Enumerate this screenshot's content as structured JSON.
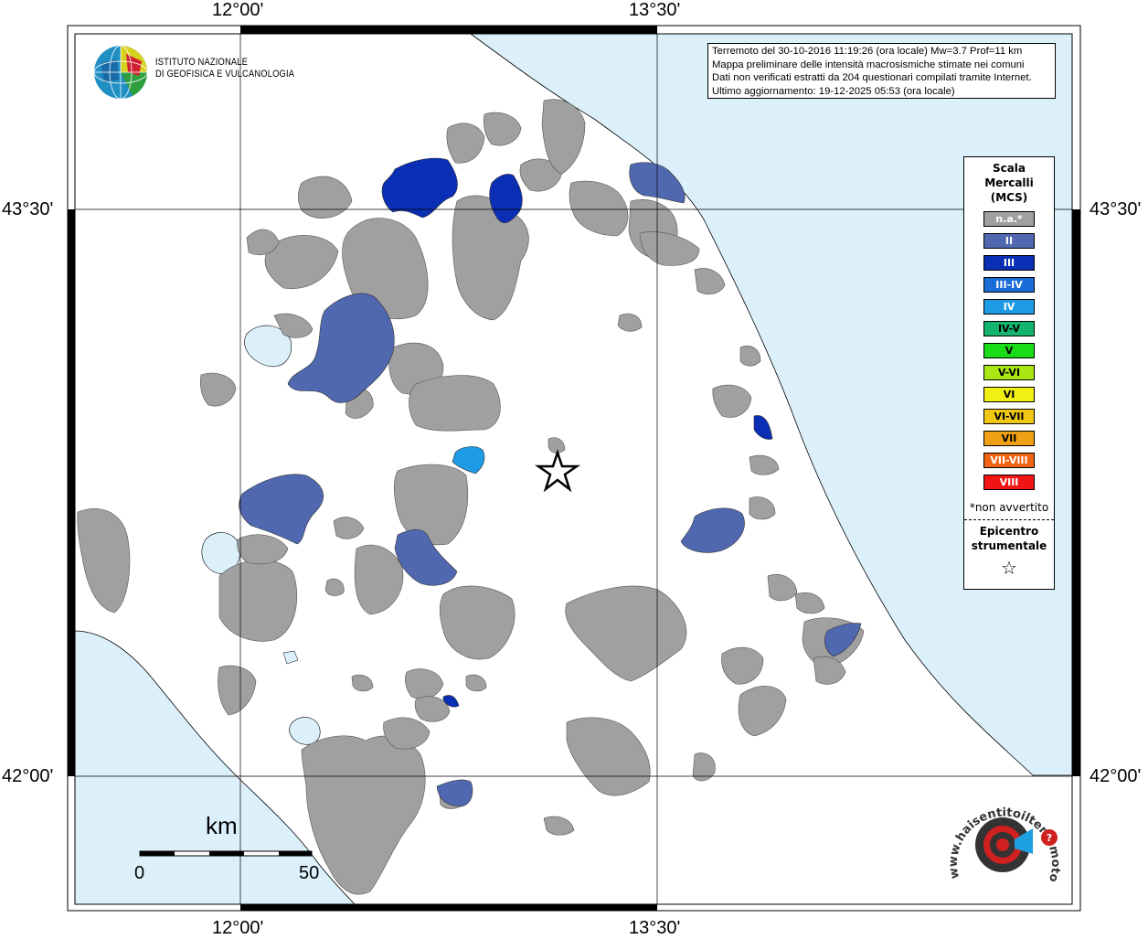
{
  "coords": {
    "top_left": "12°00'",
    "top_right": "13°30'",
    "bottom_left": "12°00'",
    "bottom_right": "13°30'",
    "left_top": "43°30'",
    "left_bottom": "42°00'",
    "right_top": "43°30'",
    "right_bottom": "42°00'"
  },
  "info": {
    "line1": "Terremoto del 30-10-2016 11:19:26 (ora locale) Mw=3.7 Prof=11 km",
    "line2": "Mappa preliminare delle intensità macrosismiche stimate nei comuni",
    "line3": "Dati non verificati estratti da 204 questionari compilati tramite Internet.",
    "line4": "Ultimo aggiornamento: 19-12-2025 05:53 (ora locale)"
  },
  "ingv": {
    "line1": "ISTITUTO NAZIONALE",
    "line2": "DI GEOFISICA E VULCANOLOGIA"
  },
  "legend": {
    "title_line1": "Scala",
    "title_line2": "Mercalli",
    "title_line3": "(MCS)",
    "items": [
      {
        "label": "n.a.*",
        "color": "#a0a0a0"
      },
      {
        "label": "II",
        "color": "#4f68b0"
      },
      {
        "label": "III",
        "color": "#0a2eb4"
      },
      {
        "label": "III-IV",
        "color": "#1a6cd6"
      },
      {
        "label": "IV",
        "color": "#1e9be6"
      },
      {
        "label": "IV-V",
        "color": "#14b46e"
      },
      {
        "label": "V",
        "color": "#18dc18"
      },
      {
        "label": "V-VI",
        "color": "#a8e614"
      },
      {
        "label": "VI",
        "color": "#f0f014"
      },
      {
        "label": "VI-VII",
        "color": "#f0c814"
      },
      {
        "label": "VII",
        "color": "#f0a014"
      },
      {
        "label": "VII-VIII",
        "color": "#f06414"
      },
      {
        "label": "VIII",
        "color": "#f01414"
      }
    ],
    "note": "*non avvertito",
    "epi_line1": "Epicentro",
    "epi_line2": "strumentale",
    "epi_symbol": "☆"
  },
  "scale": {
    "unit": "km",
    "start": "0",
    "end": "50"
  },
  "watermark": {
    "text": "www.haisentitoilterremoto.it",
    "badge": "?"
  },
  "colors": {
    "sea": "#dcf0fb",
    "land": "#ffffff",
    "na": "#a0a0a0",
    "ii": "#4f68b0",
    "iii": "#0a2eb4",
    "iv": "#1e9be6"
  }
}
